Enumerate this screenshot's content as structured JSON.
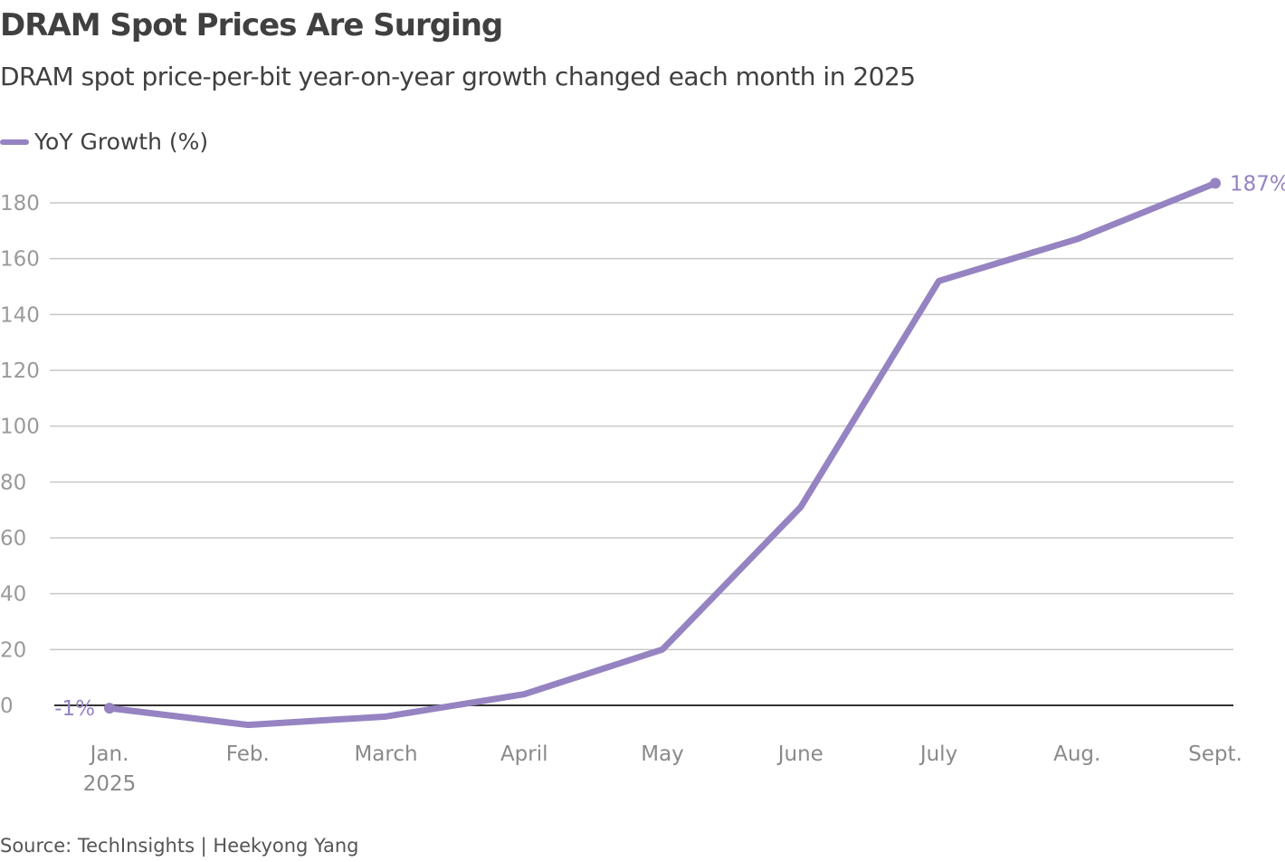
{
  "title": "DRAM Spot Prices Are Surging",
  "subtitle": "DRAM spot price-per-bit year-on-year growth changed each month in 2025",
  "source": "Source: TechInsights | Heekyong Yang",
  "colors": {
    "series": "#9583c2",
    "grid": "#c8c8c8",
    "zero": "#333333",
    "tick": "#9a9a9a"
  },
  "chart_data": {
    "type": "line",
    "title": "DRAM Spot Prices Are Surging",
    "categories": [
      "Jan.",
      "Feb.",
      "March",
      "April",
      "May",
      "June",
      "July",
      "Aug.",
      "Sept."
    ],
    "x_sublabels": [
      "2025",
      "",
      "",
      "",
      "",
      "",
      "",
      "",
      ""
    ],
    "series": [
      {
        "name": "YoY Growth (%)",
        "values": [
          -1,
          -7,
          -4,
          4,
          20,
          71,
          152,
          167,
          187
        ]
      }
    ],
    "annotations": [
      {
        "index": 0,
        "text": "-1%"
      },
      {
        "index": 8,
        "text": "187%"
      }
    ],
    "yticks": [
      0,
      20,
      40,
      60,
      80,
      100,
      120,
      140,
      160,
      180
    ],
    "ylim": [
      -10,
      190
    ],
    "grid": true,
    "legend": "top-left"
  }
}
